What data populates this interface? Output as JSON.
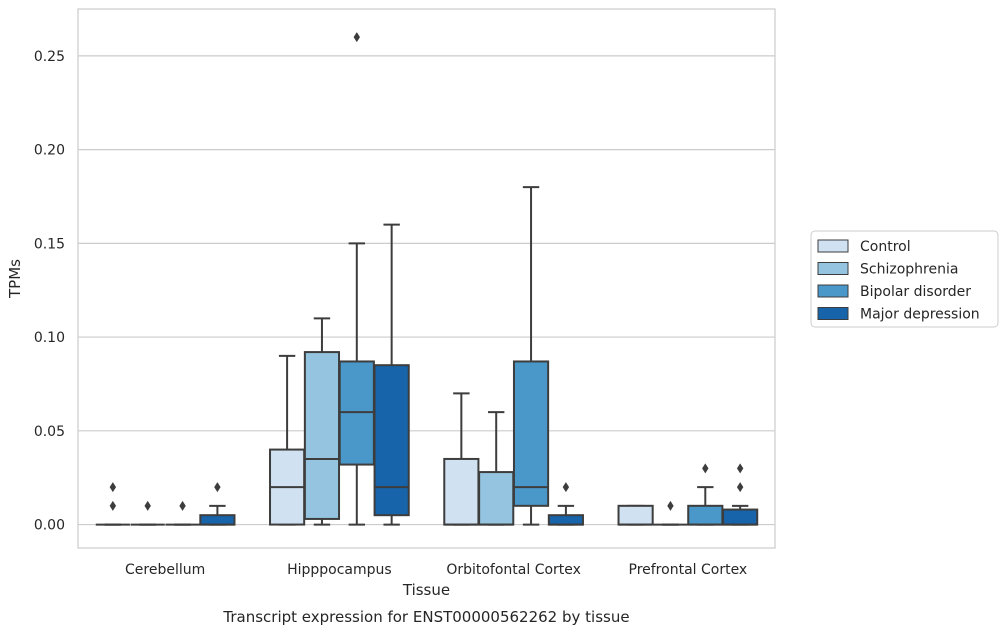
{
  "chart_data": {
    "type": "box",
    "title": "",
    "caption": "Transcript expression for ENST00000562262 by tissue",
    "xlabel": "Tissue",
    "ylabel": "TPMs",
    "ylim": [
      -0.0125,
      0.275
    ],
    "yticks": [
      0.0,
      0.05,
      0.1,
      0.15,
      0.2,
      0.25
    ],
    "ytick_labels": [
      "0.00",
      "0.05",
      "0.10",
      "0.15",
      "0.20",
      "0.25"
    ],
    "grid": "horizontal",
    "legend_position": "right",
    "categories": [
      "Cerebellum",
      "Hipppocampus",
      "Orbitofontal Cortex",
      "Prefrontal Cortex"
    ],
    "series": [
      {
        "name": "Control",
        "color": "#d0e1f2",
        "boxes": [
          {
            "q1": 0.0,
            "median": 0.0,
            "q3": 0.0,
            "whisker_low": 0.0,
            "whisker_high": 0.0,
            "outliers": [
              0.01,
              0.02
            ]
          },
          {
            "q1": 0.0,
            "median": 0.02,
            "q3": 0.04,
            "whisker_low": 0.0,
            "whisker_high": 0.09,
            "outliers": []
          },
          {
            "q1": 0.0,
            "median": 0.0,
            "q3": 0.035,
            "whisker_low": 0.0,
            "whisker_high": 0.07,
            "outliers": []
          },
          {
            "q1": 0.0,
            "median": 0.0,
            "q3": 0.01,
            "whisker_low": 0.0,
            "whisker_high": 0.01,
            "outliers": []
          }
        ]
      },
      {
        "name": "Schizophrenia",
        "color": "#94c4df",
        "boxes": [
          {
            "q1": 0.0,
            "median": 0.0,
            "q3": 0.0,
            "whisker_low": 0.0,
            "whisker_high": 0.0,
            "outliers": [
              0.01
            ]
          },
          {
            "q1": 0.003,
            "median": 0.035,
            "q3": 0.092,
            "whisker_low": 0.0,
            "whisker_high": 0.11,
            "outliers": []
          },
          {
            "q1": 0.0,
            "median": 0.0,
            "q3": 0.028,
            "whisker_low": 0.0,
            "whisker_high": 0.06,
            "outliers": []
          },
          {
            "q1": 0.0,
            "median": 0.0,
            "q3": 0.0,
            "whisker_low": 0.0,
            "whisker_high": 0.0,
            "outliers": [
              0.01
            ]
          }
        ]
      },
      {
        "name": "Bipolar disorder",
        "color": "#4a98c9",
        "boxes": [
          {
            "q1": 0.0,
            "median": 0.0,
            "q3": 0.0,
            "whisker_low": 0.0,
            "whisker_high": 0.0,
            "outliers": [
              0.01
            ]
          },
          {
            "q1": 0.032,
            "median": 0.06,
            "q3": 0.087,
            "whisker_low": 0.0,
            "whisker_high": 0.15,
            "outliers": [
              0.26
            ]
          },
          {
            "q1": 0.01,
            "median": 0.02,
            "q3": 0.087,
            "whisker_low": 0.0,
            "whisker_high": 0.18,
            "outliers": []
          },
          {
            "q1": 0.0,
            "median": 0.0,
            "q3": 0.01,
            "whisker_low": 0.0,
            "whisker_high": 0.02,
            "outliers": [
              0.03
            ]
          }
        ]
      },
      {
        "name": "Major depression",
        "color": "#1764ab",
        "boxes": [
          {
            "q1": 0.0,
            "median": 0.0,
            "q3": 0.005,
            "whisker_low": 0.0,
            "whisker_high": 0.01,
            "outliers": [
              0.02
            ]
          },
          {
            "q1": 0.005,
            "median": 0.02,
            "q3": 0.085,
            "whisker_low": 0.0,
            "whisker_high": 0.16,
            "outliers": []
          },
          {
            "q1": 0.0,
            "median": 0.0,
            "q3": 0.005,
            "whisker_low": 0.0,
            "whisker_high": 0.01,
            "outliers": [
              0.02
            ]
          },
          {
            "q1": 0.0,
            "median": 0.0,
            "q3": 0.008,
            "whisker_low": 0.0,
            "whisker_high": 0.01,
            "outliers": [
              0.02,
              0.03
            ]
          }
        ]
      }
    ]
  }
}
